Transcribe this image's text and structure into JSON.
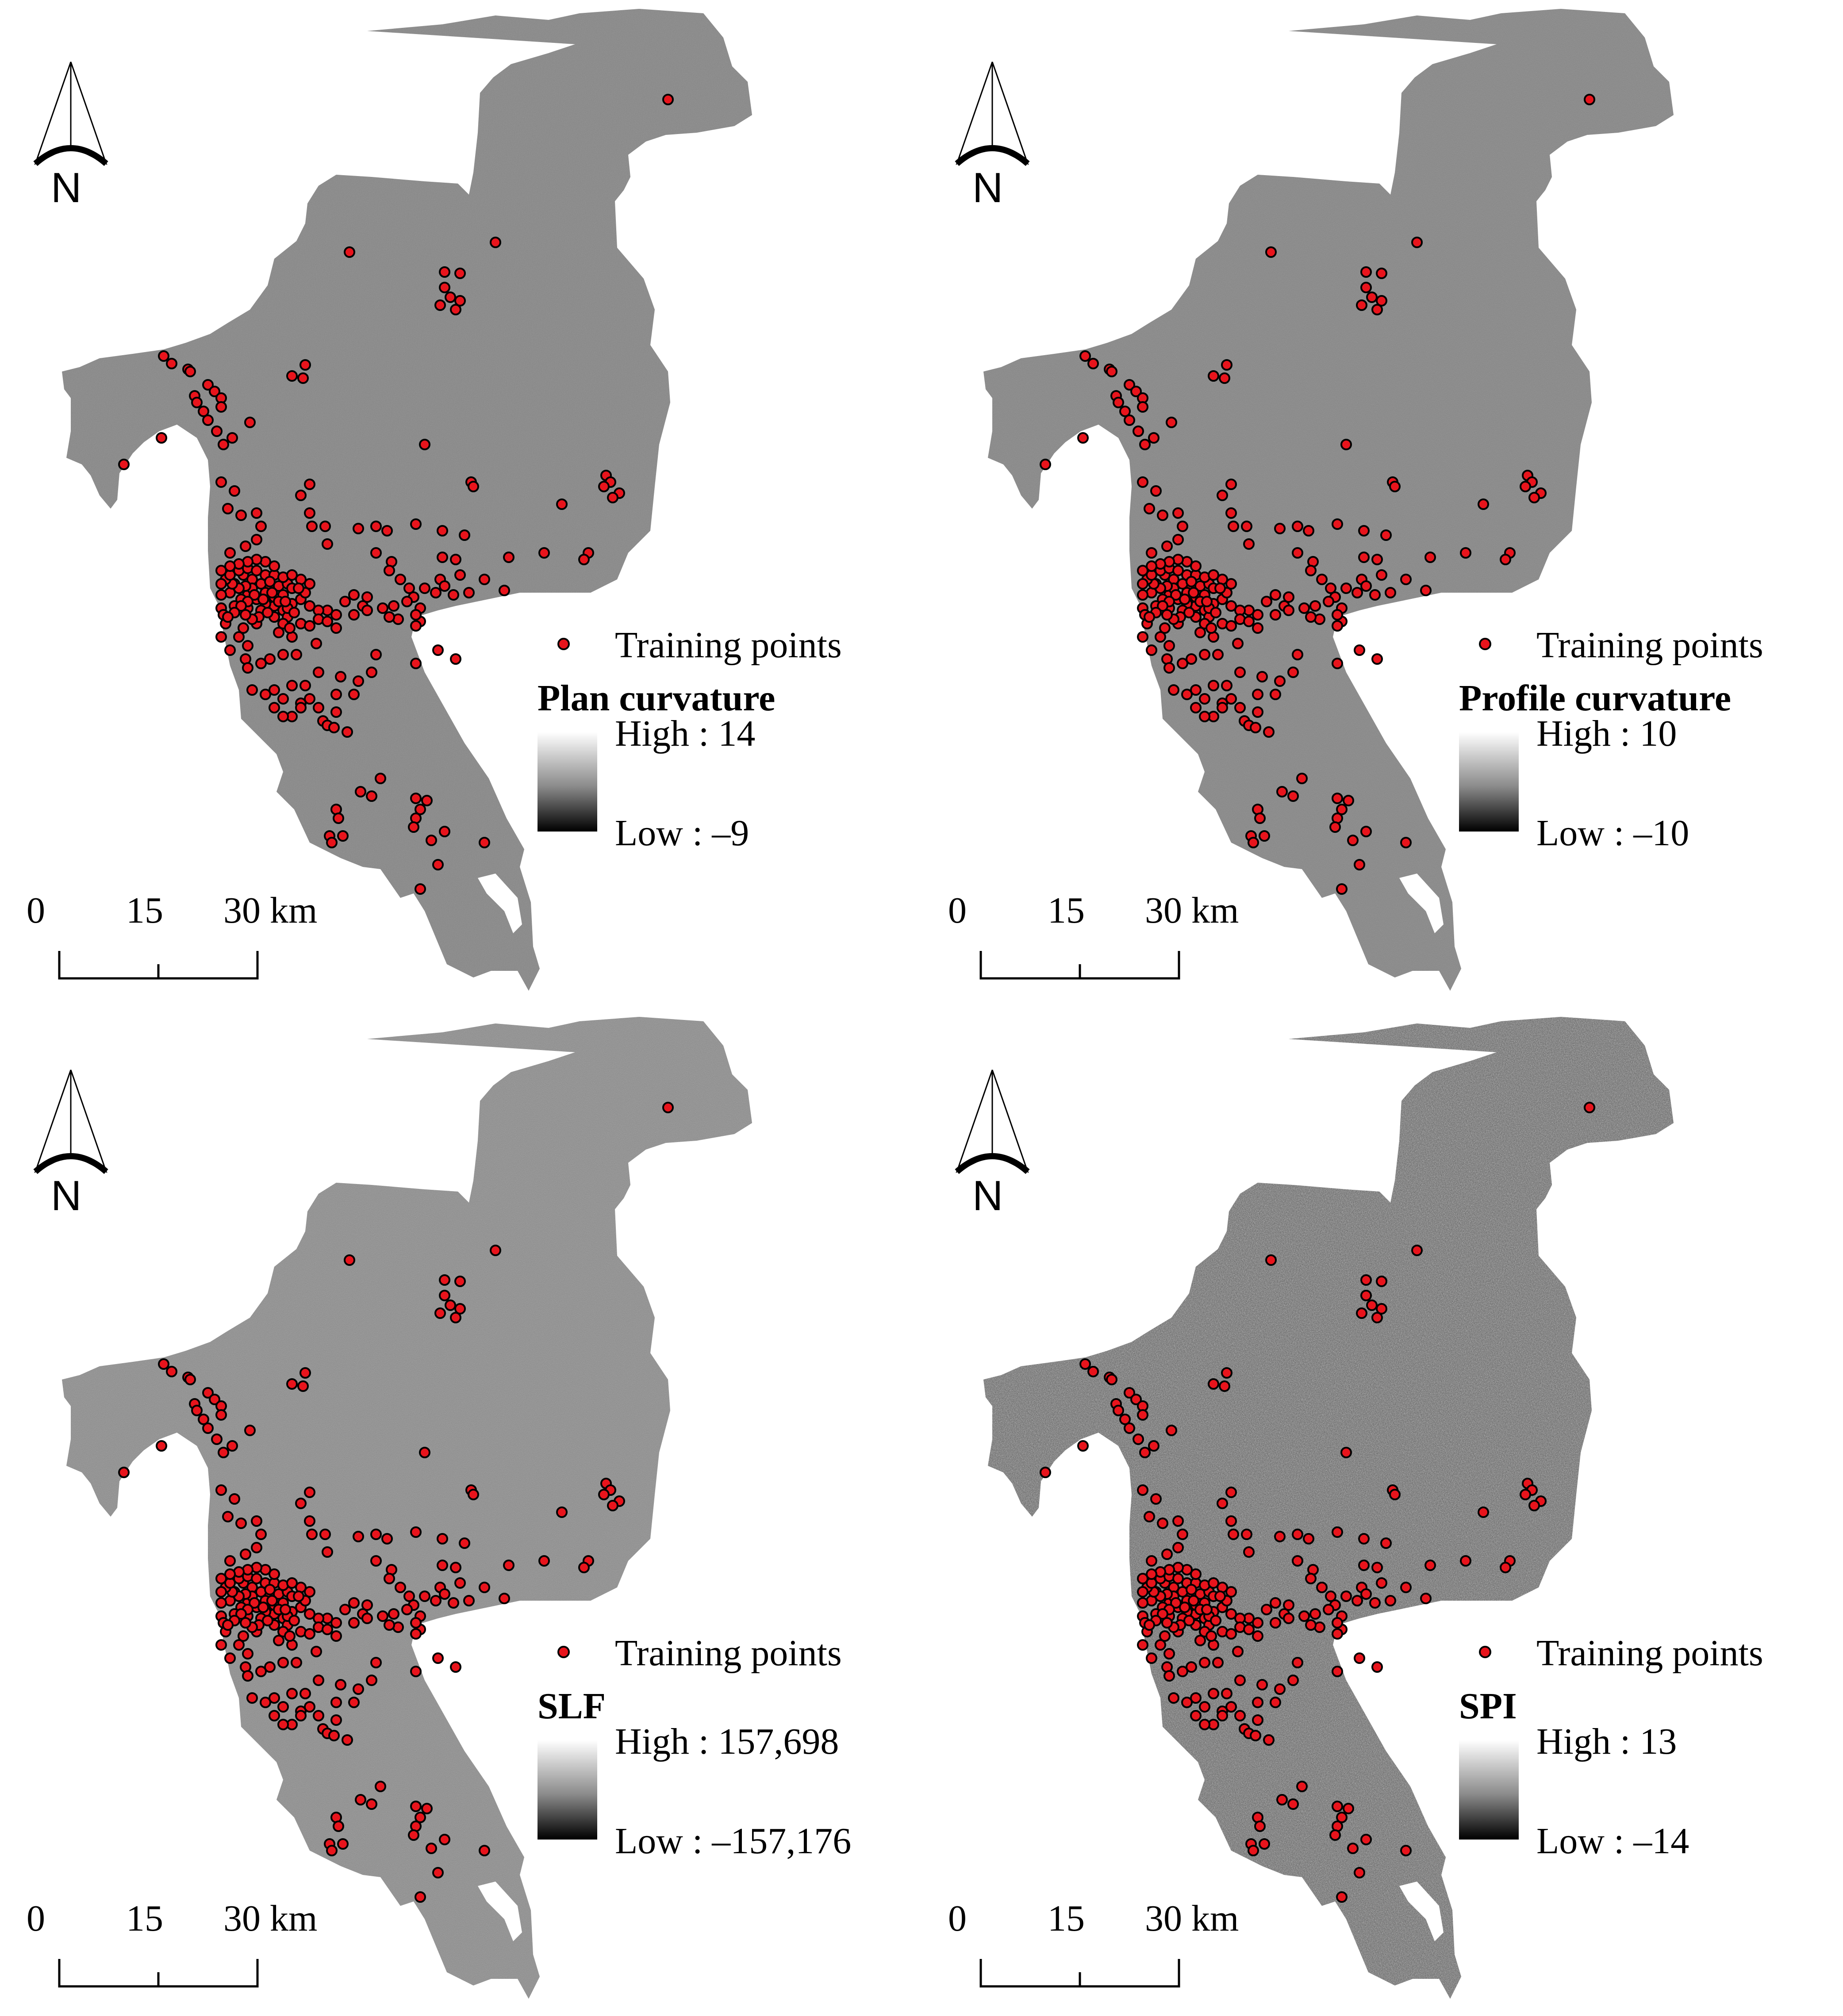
{
  "legend": {
    "points_label": "Training points"
  },
  "scale_bar": {
    "ticks": [
      "0",
      "15",
      "30 km"
    ]
  },
  "north_arrow": {
    "label": "N",
    "icon": "north-arrow-icon"
  },
  "colors": {
    "points_fill": "#e8141c",
    "points_stroke": "#000000"
  },
  "panels": [
    {
      "id": "plan-curvature",
      "title": "Plan curvature",
      "high": "High : 14",
      "low": "Low : –9",
      "texture": "flat-grey"
    },
    {
      "id": "profile-curvature",
      "title": "Profile curvature",
      "high": "High : 10",
      "low": "Low : –10",
      "texture": "flat-grey"
    },
    {
      "id": "slf",
      "title": "SLF",
      "high": "High : 157,698",
      "low": "Low : –157,176",
      "texture": "grey-noisy-north"
    },
    {
      "id": "spi",
      "title": "SPI",
      "high": "High : 13",
      "low": "Low : –14",
      "texture": "mottled-dark"
    }
  ]
}
